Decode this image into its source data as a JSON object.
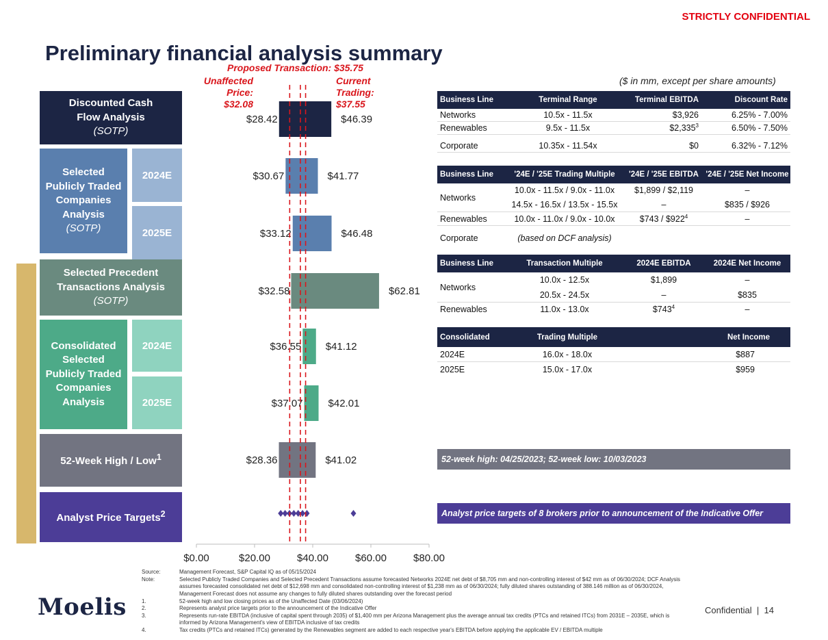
{
  "header": {
    "confidential": "STRICTLY CONFIDENTIAL",
    "title": "Preliminary financial analysis summary",
    "units_note": "($ in mm, except per share amounts)"
  },
  "reference_lines": {
    "proposed": "Proposed Transaction: $35.75",
    "unaffected_lines": [
      "Unaffected",
      "Price:",
      "$32.08"
    ],
    "current_lines": [
      "Current",
      "Trading:",
      "$37.55"
    ]
  },
  "methods": {
    "dcf": {
      "lines": [
        "Discounted Cash",
        "Flow Analysis"
      ],
      "sub": "(SOTP)"
    },
    "sptc": {
      "lines": [
        "Selected",
        "Publicly Traded",
        "Companies",
        "Analysis"
      ],
      "sub": "(SOTP)"
    },
    "spta": {
      "lines": [
        "Selected Precedent",
        "Transactions Analysis"
      ],
      "sub": "(SOTP)"
    },
    "csptc": {
      "lines": [
        "Consolidated",
        "Selected",
        "Publicly Traded",
        "Companies",
        "Analysis"
      ]
    },
    "week52": {
      "label": "52-Week High / Low",
      "sup": "1"
    },
    "analyst": {
      "label": "Analyst Price Targets",
      "sup": "2"
    },
    "year_2024": "2024E",
    "year_2025": "2025E"
  },
  "colors": {
    "navy": "#1c2544",
    "blue_dark": "#5a7fae",
    "blue_light": "#9ab4d3",
    "sage": "#6a8a7f",
    "green_dark": "#4daa88",
    "green_light": "#8fd3bf",
    "gray": "#727481",
    "purple": "#4c3d97",
    "gold": "#d7b76c",
    "red": "#d9161c"
  },
  "chart_data": {
    "type": "bar",
    "orientation": "horizontal-range",
    "categories": [
      "Discounted Cash Flow Analysis (SOTP)",
      "Selected Publicly Traded Companies Analysis (SOTP) 2024E",
      "Selected Publicly Traded Companies Analysis (SOTP) 2025E",
      "Selected Precedent Transactions Analysis (SOTP)",
      "Consolidated Selected Publicly Traded Companies Analysis 2024E",
      "Consolidated Selected Publicly Traded Companies Analysis 2025E",
      "52-Week High / Low"
    ],
    "ranges": [
      {
        "low": 28.42,
        "high": 46.39,
        "low_label": "$28.42",
        "high_label": "$46.39",
        "color": "#1c2544"
      },
      {
        "low": 30.67,
        "high": 41.77,
        "low_label": "$30.67",
        "high_label": "$41.77",
        "color": "#5a7fae"
      },
      {
        "low": 33.12,
        "high": 46.48,
        "low_label": "$33.12",
        "high_label": "$46.48",
        "color": "#5a7fae"
      },
      {
        "low": 32.58,
        "high": 62.81,
        "low_label": "$32.58",
        "high_label": "$62.81",
        "color": "#6a8a7f"
      },
      {
        "low": 36.55,
        "high": 41.12,
        "low_label": "$36.55",
        "high_label": "$41.12",
        "color": "#4daa88"
      },
      {
        "low": 37.07,
        "high": 42.01,
        "low_label": "$37.07",
        "high_label": "$42.01",
        "color": "#4daa88"
      },
      {
        "low": 28.36,
        "high": 41.02,
        "low_label": "$28.36",
        "high_label": "$41.02",
        "color": "#727481"
      }
    ],
    "analyst_targets": [
      29,
      30.5,
      32,
      33.5,
      35,
      36.5,
      38,
      54
    ],
    "reference_values": {
      "unaffected": 32.08,
      "proposed": 35.75,
      "current": 37.55
    },
    "xlim": [
      0,
      80
    ],
    "x_ticks": [
      0,
      20,
      40,
      60,
      80
    ],
    "x_tick_labels": [
      "$0.00",
      "$20.00",
      "$40.00",
      "$60.00",
      "$80.00"
    ],
    "grid": false,
    "xlabel": "",
    "ylabel": ""
  },
  "tables": {
    "dcf": {
      "headers": [
        "Business Line",
        "Terminal Range",
        "Terminal EBITDA",
        "Discount Rate"
      ],
      "rows": [
        {
          "line": "Networks",
          "range": "10.5x - 11.5x",
          "ebitda": "$3,926",
          "sup": "",
          "rate": "6.25% - 7.00%"
        },
        {
          "line": "Renewables",
          "range": "9.5x - 11.5x",
          "ebitda": "$2,335",
          "sup": "3",
          "rate": "6.50% - 7.50%"
        },
        {
          "line": "Corporate",
          "range": "10.35x - 11.54x",
          "ebitda": "$0",
          "sup": "",
          "rate": "6.32% - 7.12%"
        }
      ]
    },
    "trading": {
      "headers": [
        "Business Line",
        "'24E / '25E Trading Multiple",
        "'24E / '25E EBITDA",
        "'24E / '25E Net Income"
      ],
      "networks": "Networks",
      "networks_rows": [
        {
          "multiple": "10.0x - 11.5x / 9.0x - 11.0x",
          "ebitda": "$1,899 / $2,119",
          "ni": "–"
        },
        {
          "multiple": "14.5x - 16.5x / 13.5x - 15.5x",
          "ebitda": "–",
          "ni": "$835 / $926"
        }
      ],
      "renewables": {
        "line": "Renewables",
        "multiple": "10.0x - 11.0x / 9.0x - 10.0x",
        "ebitda": "$743 / $922",
        "sup": "4",
        "ni": "–"
      },
      "corporate": {
        "line": "Corporate",
        "note": "(based on DCF analysis)"
      }
    },
    "precedent": {
      "headers": [
        "Business Line",
        "Transaction Multiple",
        "2024E EBITDA",
        "2024E Net Income"
      ],
      "networks": "Networks",
      "networks_rows": [
        {
          "multiple": "10.0x - 12.5x",
          "ebitda": "$1,899",
          "ni": "–"
        },
        {
          "multiple": "20.5x - 24.5x",
          "ebitda": "–",
          "ni": "$835"
        }
      ],
      "renewables": {
        "line": "Renewables",
        "multiple": "11.0x - 13.0x",
        "ebitda": "$743",
        "sup": "4",
        "ni": "–"
      }
    },
    "consolidated": {
      "headers": [
        "Consolidated",
        "Trading Multiple",
        "Net Income"
      ],
      "rows": [
        {
          "year": "2024E",
          "multiple": "16.0x - 18.0x",
          "ni": "$887"
        },
        {
          "year": "2025E",
          "multiple": "15.0x - 17.0x",
          "ni": "$959"
        }
      ]
    },
    "week52_note": "52-week high: 04/25/2023; 52-week low: 10/03/2023",
    "analyst_note": "Analyst price targets of 8 brokers prior to announcement of the Indicative Offer"
  },
  "footnotes": [
    {
      "key": "Source:",
      "text": "Management Forecast, S&P Capital IQ as of 05/15/2024"
    },
    {
      "key": "Note:",
      "text": "Selected Publicly Traded Companies and Selected Precedent Transactions assume forecasted Networks 2024E net debt of $8,705 mm and non-controlling interest of $42 mm as of 06/30/2024; DCF Analysis assumes forecasted consolidated net debt of $12,698 mm and consolidated non-controlling interest of $1,238 mm as of 06/30/2024; fully diluted shares outstanding of 388.146 million as of 06/30/2024, Management Forecast does not assume any changes to fully diluted shares outstanding over the forecast period"
    },
    {
      "key": "1.",
      "text": "52-week high and low closing prices as of the Unaffected Date (03/06/2024)"
    },
    {
      "key": "2.",
      "text": "Represents analyst price targets prior to the announcement of the Indicative Offer"
    },
    {
      "key": "3.",
      "text": "Represents run-rate EBITDA (inclusive of capital spent through 2035) of $1,400 mm per Arizona Management plus the average annual tax credits (PTCs and retained ITCs) from 2031E – 2035E, which is informed by Arizona Management's view of EBITDA inclusive of tax credits"
    },
    {
      "key": "4.",
      "text": "Tax credits (PTCs and retained ITCs) generated by the Renewables segment are added to each respective year's EBITDA before applying the applicable EV / EBITDA multiple"
    }
  ],
  "footer": {
    "logo": "Moelis",
    "confidential": "Confidential",
    "separator": "|",
    "page": "14"
  }
}
